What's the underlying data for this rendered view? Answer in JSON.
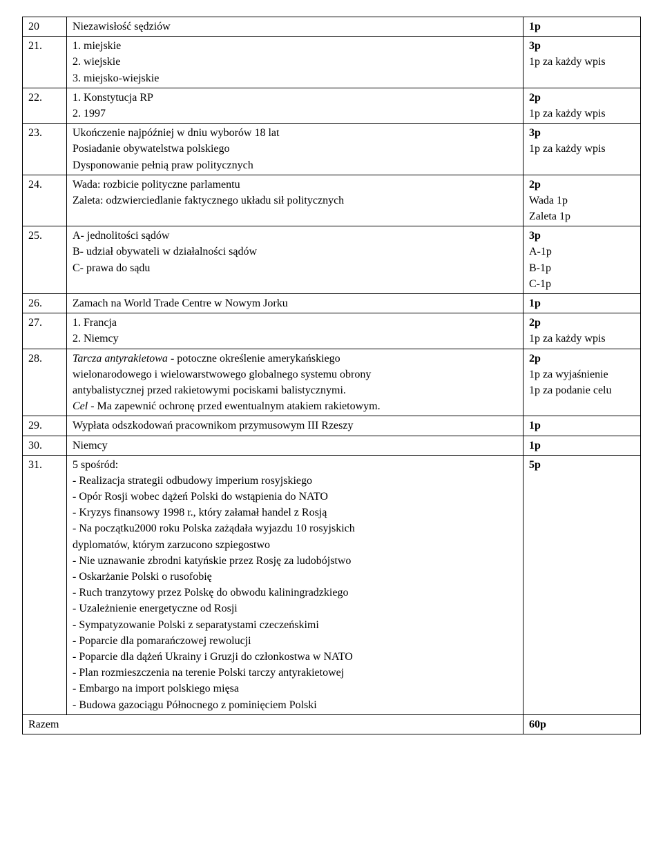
{
  "rows": [
    {
      "num": "20",
      "ans": [
        "Niezawisłość sędziów"
      ],
      "pts": [
        {
          "t": "1p",
          "b": true
        }
      ]
    },
    {
      "num": "21.",
      "ans": [
        "1. miejskie",
        "2. wiejskie",
        "3. miejsko-wiejskie"
      ],
      "pts": [
        {
          "t": "3p",
          "b": true
        },
        {
          "t": "1p za każdy wpis"
        }
      ]
    },
    {
      "num": "22.",
      "ans": [
        "1. Konstytucja RP",
        "2. 1997"
      ],
      "pts": [
        {
          "t": "2p",
          "b": true
        },
        {
          "t": "1p za każdy wpis"
        }
      ]
    },
    {
      "num": "23.",
      "ans": [
        "Ukończenie najpóźniej w dniu wyborów 18 lat",
        "Posiadanie obywatelstwa polskiego",
        "Dysponowanie pełnią praw politycznych"
      ],
      "pts": [
        {
          "t": "3p",
          "b": true
        },
        {
          "t": "1p za każdy wpis"
        }
      ]
    },
    {
      "num": "24.",
      "ans": [
        "Wada: rozbicie polityczne parlamentu",
        "Zaleta: odzwierciedlanie faktycznego układu sił politycznych"
      ],
      "pts": [
        {
          "t": "2p",
          "b": true
        },
        {
          "t": "Wada 1p"
        },
        {
          "t": "Zaleta 1p"
        }
      ]
    },
    {
      "num": "25.",
      "ans": [
        "A- jednolitości sądów",
        "B- udział obywateli w działalności sądów",
        "C- prawa do sądu"
      ],
      "pts": [
        {
          "t": "3p",
          "b": true
        },
        {
          "t": "A-1p"
        },
        {
          "t": "B-1p"
        },
        {
          "t": "C-1p"
        }
      ]
    },
    {
      "num": "26.",
      "ans": [
        "Zamach na World Trade Centre w Nowym Jorku"
      ],
      "pts": [
        {
          "t": "1p",
          "b": true
        }
      ]
    },
    {
      "num": "27.",
      "ans": [
        "1. Francja",
        "2. Niemcy"
      ],
      "pts": [
        {
          "t": "2p",
          "b": true
        },
        {
          "t": "1p za każdy wpis"
        }
      ]
    },
    {
      "num": "28.",
      "ans_rich": [
        [
          {
            "t": "Tarcza antyrakietowa",
            "i": true
          },
          {
            "t": " - potoczne określenie amerykańskiego"
          }
        ],
        [
          {
            "t": "wielonarodowego i wielowarstwowego globalnego systemu obrony"
          }
        ],
        [
          {
            "t": "antybalistycznej przed rakietowymi pociskami balistycznymi."
          }
        ],
        [
          {
            "t": "Cel",
            "i": true
          },
          {
            "t": " - Ma zapewnić ochronę przed ewentualnym atakiem rakietowym."
          }
        ]
      ],
      "pts": [
        {
          "t": "2p",
          "b": true
        },
        {
          "t": "1p za wyjaśnienie"
        },
        {
          "t": "1p za podanie celu"
        }
      ]
    },
    {
      "num": "29.",
      "ans": [
        "Wypłata odszkodowań pracownikom przymusowym III Rzeszy"
      ],
      "pts": [
        {
          "t": "1p",
          "b": true
        }
      ]
    },
    {
      "num": "30.",
      "ans": [
        "Niemcy"
      ],
      "pts": [
        {
          "t": "1p",
          "b": true
        }
      ]
    },
    {
      "num": "31.",
      "ans": [
        "5 spośród:",
        "- Realizacja strategii odbudowy imperium rosyjskiego",
        "- Opór Rosji wobec dążeń Polski do wstąpienia do NATO",
        "- Kryzys finansowy 1998 r., który załamał handel z Rosją",
        "- Na początku2000 roku Polska zażądała wyjazdu 10 rosyjskich",
        "dyplomatów, którym zarzucono szpiegostwo",
        "- Nie uznawanie zbrodni katyńskie przez Rosję za ludobójstwo",
        "- Oskarżanie Polski o rusofobię",
        "- Ruch tranzytowy przez Polskę do obwodu kaliningradzkiego",
        "- Uzależnienie energetyczne od Rosji",
        "- Sympatyzowanie Polski z separatystami czeczeńskimi",
        "- Poparcie dla pomarańczowej rewolucji",
        "- Poparcie dla dążeń Ukrainy i Gruzji do członkostwa w NATO",
        "- Plan rozmieszczenia na terenie Polski tarczy antyrakietowej",
        "- Embargo na import polskiego mięsa",
        "- Budowa gazociągu Północnego z pominięciem Polski"
      ],
      "pts": [
        {
          "t": "5p",
          "b": true
        }
      ]
    }
  ],
  "total": {
    "label": "Razem",
    "value": "60p"
  }
}
